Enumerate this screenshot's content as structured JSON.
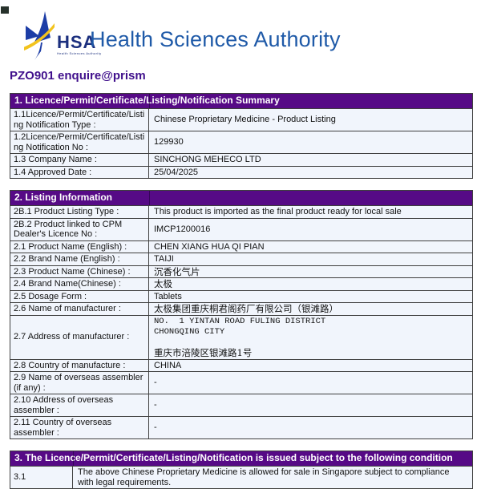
{
  "header": {
    "logo": {
      "acronym": "HSA",
      "tagline": "Health Sciences Authority",
      "title": "Health Sciences Authority"
    },
    "ref_line": "PZO901 enquire@prism"
  },
  "colors": {
    "section_header_bg": "#560a86",
    "row_bg": "#f1f5fc",
    "border": "#3f3f3f",
    "title_blue": "#1f5aa8",
    "ref_purple": "#40108c",
    "logo_navy": "#1b2f7e",
    "logo_blue": "#1d3da6",
    "logo_yellow": "#f2c31d"
  },
  "sections": [
    {
      "title": "1. Licence/Permit/Certificate/Listing/Notification Summary",
      "rows": [
        {
          "label": "1.1Licence/Permit/Certificate/Listing Notification Type :",
          "value": "Chinese Proprietary Medicine - Product Listing"
        },
        {
          "label": "1.2Licence/Permit/Certificate/Listing Notification No :",
          "value": "129930"
        },
        {
          "label": "1.3 Company Name :",
          "value": "SINCHONG MEHECO LTD"
        },
        {
          "label": "1.4 Approved Date :",
          "value": "25/04/2025"
        }
      ]
    },
    {
      "title": "2. Listing Information",
      "rows": [
        {
          "label": "2B.1 Product Listing Type :",
          "value": "This product is imported as the final product ready for local sale"
        },
        {
          "label": "2B.2 Product linked to CPM Dealer's Licence No :",
          "value": "IMCP1200016"
        },
        {
          "label": "2.1 Product Name (English) :",
          "value": "CHEN XIANG HUA QI PIAN"
        },
        {
          "label": "2.2 Brand Name (English) :",
          "value": "TAIJI"
        },
        {
          "label": "2.3 Product Name (Chinese) :",
          "value": "沉香化气片",
          "value_style": "cjk"
        },
        {
          "label": "2.4 Brand Name(Chinese) :",
          "value": "太极",
          "value_style": "cjk"
        },
        {
          "label": "2.5 Dosage Form :",
          "value": "Tablets"
        },
        {
          "label": "2.6 Name of manufacturer :",
          "value": "太极集团重庆桐君阁药厂有限公司（银滩路）",
          "value_style": "cjk"
        },
        {
          "label": "2.7 Address of manufacturer :",
          "value_lines": [
            {
              "text": "NO.  1 YINTAN ROAD FULING DISTRICT",
              "style": "mono"
            },
            {
              "text": "CHONGQING CITY",
              "style": "mono"
            },
            {
              "text": "",
              "style": "mono"
            },
            {
              "text": "重庆市涪陵区银滩路1号",
              "style": "cjk"
            }
          ]
        },
        {
          "label": "2.8 Country of manufacture :",
          "value": "CHINA"
        },
        {
          "label": "2.9 Name of overseas assembler (if any) :",
          "value": "-"
        },
        {
          "label": "2.10 Address of overseas assembler :",
          "value": "-"
        },
        {
          "label": "2.11 Country of overseas assembler :",
          "value": "-"
        }
      ]
    },
    {
      "title": "3. The Licence/Permit/Certificate/Listing/Notification is issued subject to the following condition",
      "narrow_label": true,
      "rows": [
        {
          "label": "3.1",
          "value": "The above Chinese Proprietary Medicine is allowed for sale in Singapore subject to compliance with legal requirements."
        }
      ]
    }
  ]
}
